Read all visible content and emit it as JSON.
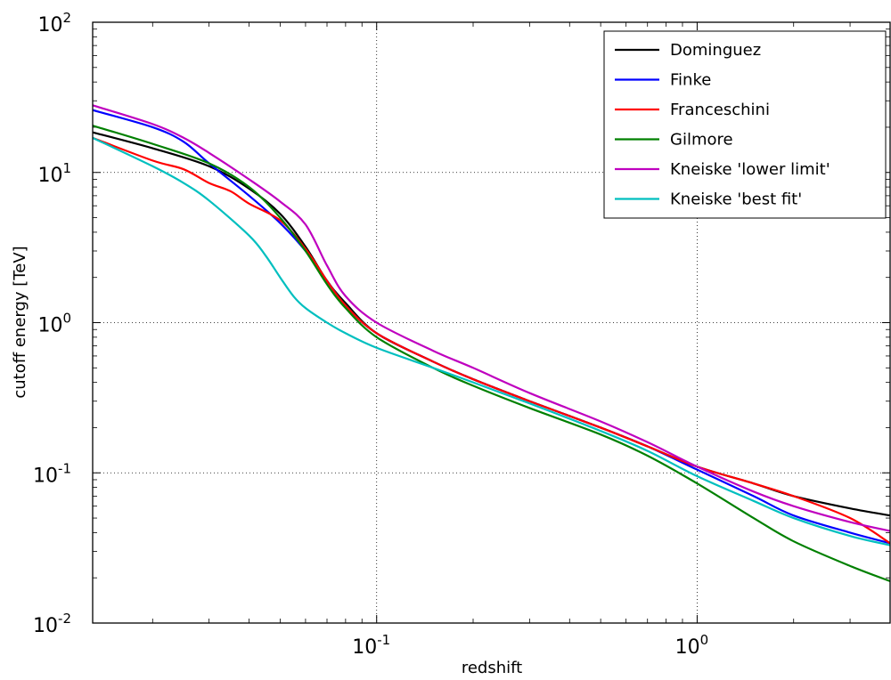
{
  "chart_data": {
    "type": "line",
    "title": "",
    "xlabel": "redshift",
    "ylabel": "cutoff energy [TeV]",
    "xscale": "log",
    "yscale": "log",
    "xlim": [
      0.013,
      4.0
    ],
    "ylim": [
      0.01,
      100
    ],
    "grid": true,
    "legend_position": "top-right",
    "x_ticks": [
      {
        "base": "10",
        "exp": "-1",
        "value": 0.1
      },
      {
        "base": "10",
        "exp": "0",
        "value": 1
      }
    ],
    "y_ticks": [
      {
        "base": "10",
        "exp": "-2",
        "value": 0.01
      },
      {
        "base": "10",
        "exp": "-1",
        "value": 0.1
      },
      {
        "base": "10",
        "exp": "0",
        "value": 1
      },
      {
        "base": "10",
        "exp": "1",
        "value": 10
      },
      {
        "base": "10",
        "exp": "2",
        "value": 100
      }
    ],
    "series": [
      {
        "name": "Dominguez",
        "color": "#000000",
        "x": [
          0.013,
          0.02,
          0.03,
          0.04,
          0.05,
          0.06,
          0.07,
          0.08,
          0.1,
          0.15,
          0.2,
          0.3,
          0.5,
          0.7,
          1.0,
          1.5,
          2.0,
          3.0,
          4.0
        ],
        "y": [
          18.5,
          14.5,
          11.0,
          7.8,
          5.3,
          3.2,
          1.9,
          1.35,
          0.85,
          0.55,
          0.42,
          0.3,
          0.2,
          0.15,
          0.11,
          0.085,
          0.07,
          0.058,
          0.052
        ]
      },
      {
        "name": "Finke",
        "color": "#0000ff",
        "x": [
          0.013,
          0.02,
          0.025,
          0.03,
          0.04,
          0.05,
          0.06,
          0.07,
          0.08,
          0.1,
          0.15,
          0.2,
          0.3,
          0.5,
          0.7,
          1.0,
          1.5,
          2.0,
          3.0,
          4.0
        ],
        "y": [
          26.0,
          20.0,
          16.0,
          11.5,
          7.0,
          4.6,
          3.0,
          1.9,
          1.3,
          0.85,
          0.55,
          0.42,
          0.3,
          0.2,
          0.15,
          0.105,
          0.07,
          0.052,
          0.04,
          0.034
        ]
      },
      {
        "name": "Franceschini",
        "color": "#ff0000",
        "x": [
          0.013,
          0.02,
          0.025,
          0.03,
          0.035,
          0.04,
          0.05,
          0.06,
          0.07,
          0.08,
          0.1,
          0.15,
          0.2,
          0.3,
          0.5,
          0.7,
          1.0,
          1.5,
          2.0,
          3.0,
          4.0
        ],
        "y": [
          17.0,
          12.0,
          10.5,
          8.5,
          7.5,
          6.2,
          4.8,
          3.1,
          1.9,
          1.3,
          0.85,
          0.55,
          0.42,
          0.3,
          0.2,
          0.15,
          0.11,
          0.085,
          0.07,
          0.05,
          0.034
        ]
      },
      {
        "name": "Gilmore",
        "color": "#008000",
        "x": [
          0.013,
          0.02,
          0.03,
          0.04,
          0.05,
          0.06,
          0.07,
          0.08,
          0.1,
          0.15,
          0.2,
          0.3,
          0.5,
          0.7,
          1.0,
          1.5,
          2.0,
          3.0,
          4.0
        ],
        "y": [
          20.5,
          15.5,
          11.5,
          8.0,
          5.0,
          3.0,
          1.8,
          1.25,
          0.8,
          0.5,
          0.38,
          0.27,
          0.18,
          0.13,
          0.085,
          0.05,
          0.035,
          0.024,
          0.019
        ]
      },
      {
        "name": "Kneiske 'lower limit'",
        "color": "#bf00bf",
        "x": [
          0.013,
          0.02,
          0.025,
          0.03,
          0.04,
          0.05,
          0.06,
          0.07,
          0.08,
          0.1,
          0.15,
          0.2,
          0.3,
          0.5,
          0.7,
          1.0,
          1.5,
          2.0,
          3.0,
          4.0
        ],
        "y": [
          28.0,
          21.0,
          17.0,
          13.5,
          9.0,
          6.4,
          4.5,
          2.4,
          1.5,
          1.0,
          0.65,
          0.5,
          0.34,
          0.22,
          0.16,
          0.11,
          0.075,
          0.06,
          0.047,
          0.041
        ]
      },
      {
        "name": "Kneiske 'best fit'",
        "color": "#00bfbf",
        "x": [
          0.013,
          0.02,
          0.025,
          0.03,
          0.04,
          0.045,
          0.05,
          0.055,
          0.06,
          0.07,
          0.08,
          0.1,
          0.15,
          0.2,
          0.3,
          0.5,
          0.7,
          1.0,
          1.5,
          2.0,
          3.0,
          4.0
        ],
        "y": [
          17.0,
          11.0,
          8.5,
          6.5,
          3.8,
          2.8,
          2.0,
          1.5,
          1.25,
          1.0,
          0.85,
          0.68,
          0.5,
          0.4,
          0.29,
          0.19,
          0.14,
          0.095,
          0.065,
          0.05,
          0.038,
          0.033
        ]
      }
    ]
  }
}
